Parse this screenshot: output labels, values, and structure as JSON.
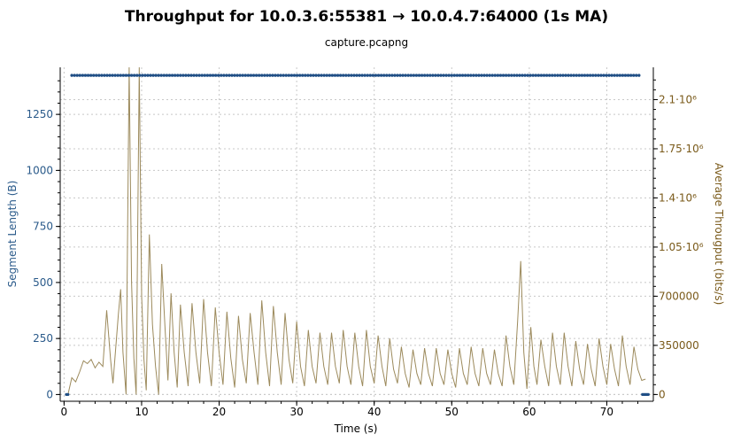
{
  "chart_data": {
    "type": "line",
    "title": "Throughput for 10.0.3.6:55381 → 10.0.4.7:64000 (1s MA)",
    "subtitle": "capture.pcapng",
    "xlabel": "Time (s)",
    "ylabel_left": "Segment Length (B)",
    "ylabel_right": "Average Througput (bits/s)",
    "xlim": [
      -0.5,
      76
    ],
    "ylim_left": [
      -30,
      1460
    ],
    "ylim_right": [
      -48000,
      2330000
    ],
    "x_ticks": [
      0,
      10,
      20,
      30,
      40,
      50,
      60,
      70
    ],
    "y_left_ticks": [
      0,
      250,
      500,
      750,
      1000,
      1250
    ],
    "y_right_ticks": [
      0,
      350000,
      700000,
      1050000,
      1400000,
      1750000,
      2100000
    ],
    "y_right_tick_labels": [
      "0",
      "350000",
      "700000",
      "1.05·10⁶",
      "1.4·10⁶",
      "1.75·10⁶",
      "2.1·10⁶"
    ],
    "grid": true,
    "colors": {
      "segment": "#1f4e85",
      "throughput": "#9c8a5c",
      "left_axis": "#2a5a8a",
      "right_axis": "#7a5a1a"
    },
    "series": [
      {
        "name": "Segment Length",
        "axis": "left",
        "style": "points",
        "note_values": "segments of 1424 B from 1 s to 74.5 s, 0 B at start and end",
        "segment_points": [
          [
            0.3,
            0
          ],
          [
            0.5,
            0
          ],
          [
            1,
            1424
          ],
          [
            74.5,
            1424
          ],
          [
            74.6,
            0
          ],
          [
            75.4,
            0
          ]
        ]
      },
      {
        "name": "Average Throughput",
        "axis": "right",
        "style": "line",
        "points": [
          [
            0.5,
            0
          ],
          [
            1,
            120000
          ],
          [
            1.5,
            90000
          ],
          [
            2,
            160000
          ],
          [
            2.5,
            240000
          ],
          [
            3,
            220000
          ],
          [
            3.5,
            250000
          ],
          [
            4,
            190000
          ],
          [
            4.5,
            230000
          ],
          [
            5,
            200000
          ],
          [
            5.5,
            600000
          ],
          [
            6,
            250000
          ],
          [
            6.3,
            80000
          ],
          [
            7,
            570000
          ],
          [
            7.3,
            750000
          ],
          [
            7.6,
            300000
          ],
          [
            8,
            0
          ],
          [
            8.4,
            2330000
          ],
          [
            8.7,
            800000
          ],
          [
            9,
            260000
          ],
          [
            9.3,
            0
          ],
          [
            9.7,
            2330000
          ],
          [
            10,
            700000
          ],
          [
            10.3,
            250000
          ],
          [
            10.6,
            30000
          ],
          [
            11,
            1140000
          ],
          [
            11.4,
            500000
          ],
          [
            11.8,
            200000
          ],
          [
            12.2,
            0
          ],
          [
            12.6,
            930000
          ],
          [
            13,
            500000
          ],
          [
            13.4,
            100000
          ],
          [
            13.8,
            720000
          ],
          [
            14.2,
            300000
          ],
          [
            14.6,
            50000
          ],
          [
            15,
            640000
          ],
          [
            15.5,
            300000
          ],
          [
            16,
            60000
          ],
          [
            16.5,
            650000
          ],
          [
            17,
            300000
          ],
          [
            17.5,
            80000
          ],
          [
            18,
            680000
          ],
          [
            18.5,
            300000
          ],
          [
            19,
            60000
          ],
          [
            19.5,
            620000
          ],
          [
            20,
            300000
          ],
          [
            20.5,
            70000
          ],
          [
            21,
            590000
          ],
          [
            21.5,
            260000
          ],
          [
            22,
            50000
          ],
          [
            22.5,
            560000
          ],
          [
            23,
            250000
          ],
          [
            23.5,
            80000
          ],
          [
            24,
            580000
          ],
          [
            24.5,
            300000
          ],
          [
            25,
            70000
          ],
          [
            25.5,
            670000
          ],
          [
            26,
            300000
          ],
          [
            26.5,
            60000
          ],
          [
            27,
            630000
          ],
          [
            27.5,
            300000
          ],
          [
            28,
            70000
          ],
          [
            28.5,
            580000
          ],
          [
            29,
            250000
          ],
          [
            29.5,
            80000
          ],
          [
            30,
            520000
          ],
          [
            30.5,
            200000
          ],
          [
            31,
            60000
          ],
          [
            31.5,
            460000
          ],
          [
            32,
            200000
          ],
          [
            32.5,
            80000
          ],
          [
            33,
            440000
          ],
          [
            33.5,
            200000
          ],
          [
            34,
            70000
          ],
          [
            34.5,
            440000
          ],
          [
            35,
            200000
          ],
          [
            35.5,
            80000
          ],
          [
            36,
            460000
          ],
          [
            36.5,
            200000
          ],
          [
            37,
            70000
          ],
          [
            37.5,
            440000
          ],
          [
            38,
            200000
          ],
          [
            38.5,
            60000
          ],
          [
            39,
            460000
          ],
          [
            39.5,
            200000
          ],
          [
            40,
            80000
          ],
          [
            40.5,
            420000
          ],
          [
            41,
            200000
          ],
          [
            41.5,
            60000
          ],
          [
            42,
            400000
          ],
          [
            42.5,
            180000
          ],
          [
            43,
            80000
          ],
          [
            43.5,
            340000
          ],
          [
            44,
            150000
          ],
          [
            44.5,
            50000
          ],
          [
            45,
            320000
          ],
          [
            45.5,
            150000
          ],
          [
            46,
            70000
          ],
          [
            46.5,
            330000
          ],
          [
            47,
            150000
          ],
          [
            47.5,
            60000
          ],
          [
            48,
            330000
          ],
          [
            48.5,
            150000
          ],
          [
            49,
            70000
          ],
          [
            49.5,
            320000
          ],
          [
            50,
            150000
          ],
          [
            50.5,
            50000
          ],
          [
            51,
            330000
          ],
          [
            51.5,
            150000
          ],
          [
            52,
            70000
          ],
          [
            52.5,
            340000
          ],
          [
            53,
            150000
          ],
          [
            53.5,
            60000
          ],
          [
            54,
            330000
          ],
          [
            54.5,
            150000
          ],
          [
            55,
            70000
          ],
          [
            55.5,
            320000
          ],
          [
            56,
            150000
          ],
          [
            56.5,
            60000
          ],
          [
            57,
            420000
          ],
          [
            57.5,
            200000
          ],
          [
            58,
            70000
          ],
          [
            58.5,
            520000
          ],
          [
            58.9,
            950000
          ],
          [
            59.3,
            300000
          ],
          [
            59.7,
            40000
          ],
          [
            60.2,
            480000
          ],
          [
            60.6,
            200000
          ],
          [
            61,
            70000
          ],
          [
            61.5,
            390000
          ],
          [
            62,
            200000
          ],
          [
            62.5,
            60000
          ],
          [
            63,
            440000
          ],
          [
            63.5,
            200000
          ],
          [
            64,
            70000
          ],
          [
            64.5,
            440000
          ],
          [
            65,
            200000
          ],
          [
            65.5,
            60000
          ],
          [
            66,
            380000
          ],
          [
            66.5,
            180000
          ],
          [
            67,
            70000
          ],
          [
            67.5,
            360000
          ],
          [
            68,
            180000
          ],
          [
            68.5,
            60000
          ],
          [
            69,
            400000
          ],
          [
            69.5,
            200000
          ],
          [
            70,
            70000
          ],
          [
            70.5,
            360000
          ],
          [
            71,
            180000
          ],
          [
            71.5,
            60000
          ],
          [
            72,
            420000
          ],
          [
            72.5,
            200000
          ],
          [
            73,
            70000
          ],
          [
            73.5,
            340000
          ],
          [
            74,
            180000
          ],
          [
            74.5,
            100000
          ],
          [
            75,
            110000
          ]
        ]
      }
    ]
  }
}
